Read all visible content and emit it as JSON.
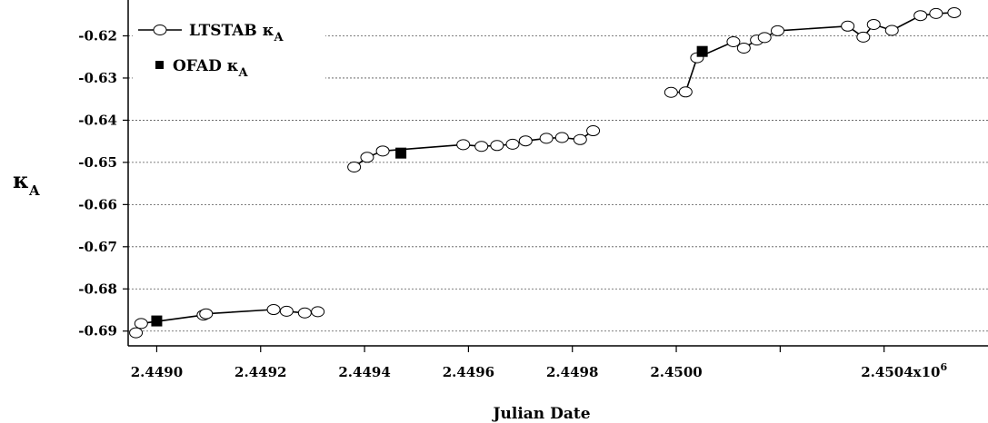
{
  "chart_data": {
    "type": "line",
    "title": "",
    "xlabel": "Julian Date",
    "ylabel": "κ",
    "ylabel_subscript": "A",
    "x_tick_labels": [
      "2.4490",
      "2.4492",
      "2.4494",
      "2.4496",
      "2.4498",
      "2.4500",
      "",
      "2.4504x10"
    ],
    "x_tick_superscript": "6",
    "y_tick_labels": [
      "-0.62",
      "-0.63",
      "-0.64",
      "-0.65",
      "-0.66",
      "-0.67",
      "-0.68",
      "-0.69"
    ],
    "xlim": [
      2448945,
      2450600
    ],
    "ylim": [
      -0.6935,
      -0.6115
    ],
    "y_ticks": [
      -0.62,
      -0.63,
      -0.64,
      -0.65,
      -0.66,
      -0.67,
      -0.68,
      -0.69
    ],
    "x_ticks": [
      2449000,
      2449200,
      2449400,
      2449600,
      2449800,
      2450000,
      2450200,
      2450400
    ],
    "grid": "horizontal dashed",
    "legend_position": "top-left",
    "series": [
      {
        "name": "LTSTAB κ",
        "name_subscript": "A",
        "marker": "open-circle",
        "line": "solid",
        "segments": [
          {
            "x": [
              2448960,
              2448970,
              2449090,
              2449095,
              2449225,
              2449250,
              2449285,
              2449310
            ],
            "y": [
              -0.6904,
              -0.6882,
              -0.6862,
              -0.6859,
              -0.6849,
              -0.6853,
              -0.6857,
              -0.6854
            ]
          },
          {
            "x": [
              2449380,
              2449405,
              2449435,
              2449590,
              2449625,
              2449655,
              2449685,
              2449710,
              2449750,
              2449780,
              2449815,
              2449840
            ],
            "y": [
              -0.6511,
              -0.6488,
              -0.6473,
              -0.6458,
              -0.6462,
              -0.646,
              -0.6457,
              -0.6449,
              -0.6443,
              -0.6441,
              -0.6446,
              -0.6425
            ]
          },
          {
            "x": [
              2449990,
              2450018,
              2450040,
              2450110,
              2450130,
              2450155,
              2450170,
              2450195,
              2450330,
              2450360,
              2450380,
              2450415,
              2450470,
              2450500,
              2450535
            ],
            "y": [
              -0.6334,
              -0.6333,
              -0.6252,
              -0.6214,
              -0.6229,
              -0.621,
              -0.6204,
              -0.6188,
              -0.6177,
              -0.6203,
              -0.6173,
              -0.6187,
              -0.6152,
              -0.6147,
              -0.6145
            ]
          }
        ]
      },
      {
        "name": "OFAD κ",
        "name_subscript": "A",
        "marker": "filled-square",
        "line": "none",
        "x": [
          2449000,
          2449470,
          2450050
        ],
        "y": [
          -0.6876,
          -0.6478,
          -0.6237
        ]
      }
    ]
  }
}
